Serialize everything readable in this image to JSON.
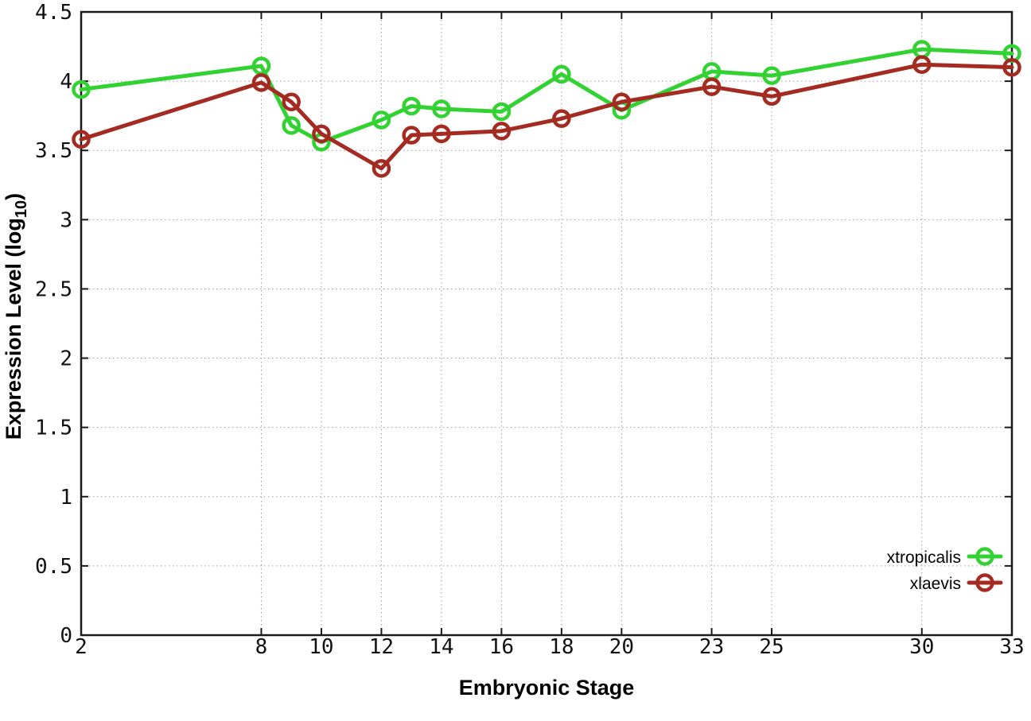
{
  "figure": {
    "background": "#ffffff",
    "border_color": "#1a1a1a",
    "grid_color": "#9e9e9e",
    "tick_color": "#1a1a1a"
  },
  "chart_data": {
    "type": "line",
    "title": "",
    "xlabel": "Embryonic Stage",
    "ylabel": "Expression Level (log10)",
    "ylabel_parts": {
      "main": "Expression Level (log",
      "sub": "10",
      "suffix": ")"
    },
    "xlim": [
      2,
      33
    ],
    "ylim": [
      0,
      4.5
    ],
    "grid": true,
    "legend_position": "bottom-right",
    "x": [
      2,
      8,
      9,
      10,
      12,
      13,
      14,
      16,
      18,
      20,
      23,
      25,
      30,
      33
    ],
    "xticks": [
      2,
      8,
      10,
      12,
      14,
      16,
      18,
      20,
      23,
      25,
      30,
      33
    ],
    "xtick_labels": [
      "2",
      "8",
      "10",
      "12",
      "14",
      "16",
      "18",
      "20",
      "23",
      "25",
      "30",
      "33"
    ],
    "yticks": [
      0,
      0.5,
      1,
      1.5,
      2,
      2.5,
      3,
      3.5,
      4,
      4.5
    ],
    "ytick_labels": [
      "0",
      "0.5",
      "1",
      "1.5",
      "2",
      "2.5",
      "3",
      "3.5",
      "4",
      "4.5"
    ],
    "series": [
      {
        "name": "xtropicalis",
        "color": "#31d231",
        "marker": "open-circle",
        "values": [
          3.94,
          4.11,
          3.68,
          3.56,
          3.72,
          3.82,
          3.8,
          3.78,
          4.05,
          3.79,
          4.07,
          4.04,
          4.23,
          4.2
        ]
      },
      {
        "name": "xlaevis",
        "color": "#a32b21",
        "marker": "open-circle",
        "values": [
          3.58,
          3.99,
          3.85,
          3.62,
          3.37,
          3.61,
          3.62,
          3.64,
          3.73,
          3.85,
          3.96,
          3.89,
          4.12,
          4.1
        ]
      }
    ]
  }
}
